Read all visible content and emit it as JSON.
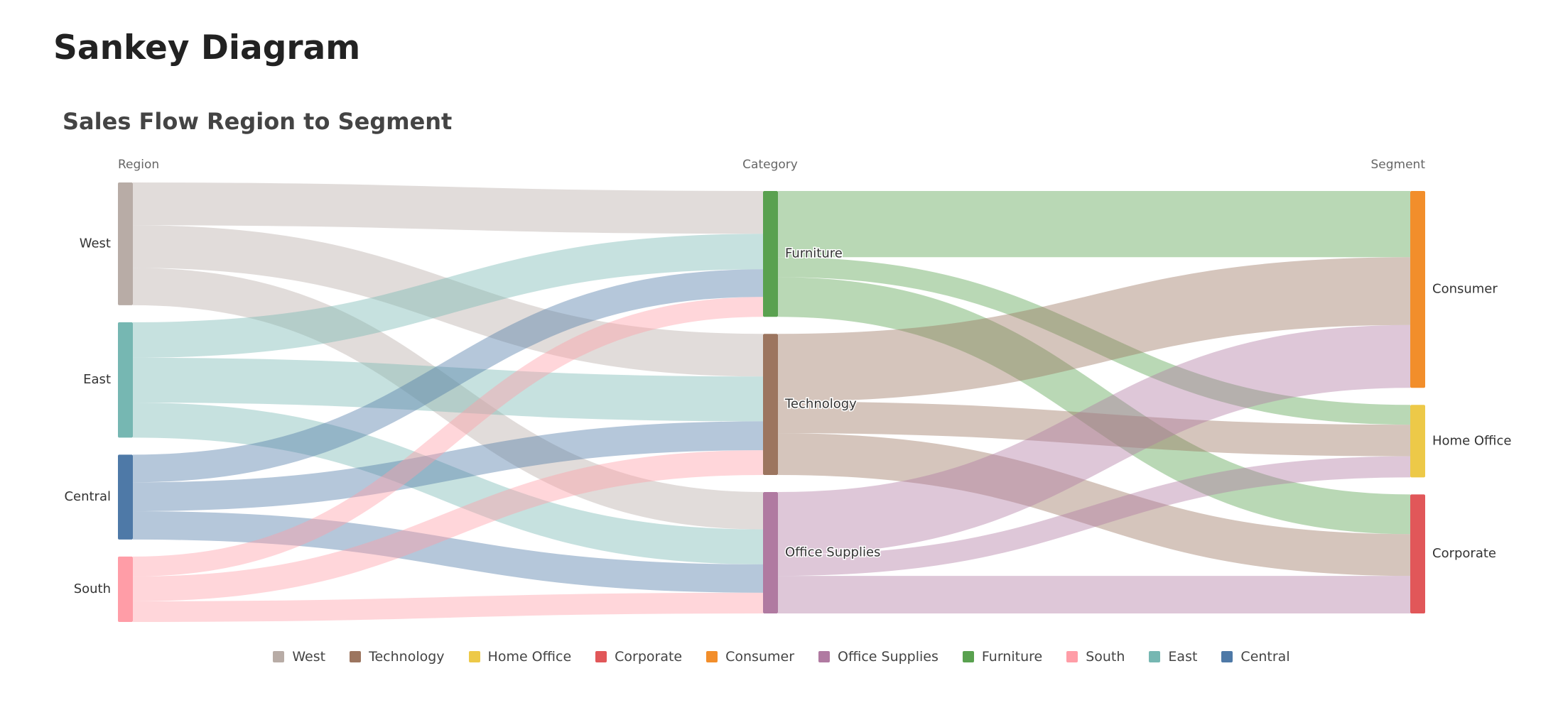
{
  "page_title": "Sankey Diagram",
  "chart_data": {
    "type": "sankey",
    "title": "Sales Flow Region to Segment",
    "columns": [
      "Region",
      "Category",
      "Segment"
    ],
    "nodes": [
      {
        "id": "West",
        "label": "West",
        "column": 0,
        "color": "#b8aca6"
      },
      {
        "id": "East",
        "label": "East",
        "column": 0,
        "color": "#76b7b2"
      },
      {
        "id": "Central",
        "label": "Central",
        "column": 0,
        "color": "#4e79a7"
      },
      {
        "id": "South",
        "label": "South",
        "column": 0,
        "color": "#ff9da7"
      },
      {
        "id": "Furniture",
        "label": "Furniture",
        "column": 1,
        "color": "#59a14f"
      },
      {
        "id": "Technology",
        "label": "Technology",
        "column": 1,
        "color": "#9c755f"
      },
      {
        "id": "Office Supplies",
        "label": "Office Supplies",
        "column": 1,
        "color": "#b07aa1"
      },
      {
        "id": "Consumer",
        "label": "Consumer",
        "column": 2,
        "color": "#f28e2b"
      },
      {
        "id": "Home Office",
        "label": "Home Office",
        "column": 2,
        "color": "#edc948"
      },
      {
        "id": "Corporate",
        "label": "Corporate",
        "column": 2,
        "color": "#e15759"
      }
    ],
    "links": [
      {
        "source": "West",
        "target": "Furniture",
        "value": 252
      },
      {
        "source": "West",
        "target": "Technology",
        "value": 251
      },
      {
        "source": "West",
        "target": "Office Supplies",
        "value": 220
      },
      {
        "source": "East",
        "target": "Furniture",
        "value": 209
      },
      {
        "source": "East",
        "target": "Technology",
        "value": 264
      },
      {
        "source": "East",
        "target": "Office Supplies",
        "value": 206
      },
      {
        "source": "Central",
        "target": "Furniture",
        "value": 163
      },
      {
        "source": "Central",
        "target": "Technology",
        "value": 170
      },
      {
        "source": "Central",
        "target": "Office Supplies",
        "value": 167
      },
      {
        "source": "South",
        "target": "Furniture",
        "value": 117
      },
      {
        "source": "South",
        "target": "Technology",
        "value": 146
      },
      {
        "source": "South",
        "target": "Office Supplies",
        "value": 122
      },
      {
        "source": "Furniture",
        "target": "Consumer",
        "value": 390
      },
      {
        "source": "Furniture",
        "target": "Home Office",
        "value": 117
      },
      {
        "source": "Furniture",
        "target": "Corporate",
        "value": 234
      },
      {
        "source": "Technology",
        "target": "Consumer",
        "value": 399
      },
      {
        "source": "Technology",
        "target": "Home Office",
        "value": 186
      },
      {
        "source": "Technology",
        "target": "Corporate",
        "value": 246
      },
      {
        "source": "Office Supplies",
        "target": "Consumer",
        "value": 370
      },
      {
        "source": "Office Supplies",
        "target": "Home Office",
        "value": 124
      },
      {
        "source": "Office Supplies",
        "target": "Corporate",
        "value": 221
      }
    ],
    "legend": [
      {
        "label": "West",
        "color": "#b8aca6"
      },
      {
        "label": "Technology",
        "color": "#9c755f"
      },
      {
        "label": "Home Office",
        "color": "#edc948"
      },
      {
        "label": "Corporate",
        "color": "#e15759"
      },
      {
        "label": "Consumer",
        "color": "#f28e2b"
      },
      {
        "label": "Office Supplies",
        "color": "#b07aa1"
      },
      {
        "label": "Furniture",
        "color": "#59a14f"
      },
      {
        "label": "South",
        "color": "#ff9da7"
      },
      {
        "label": "East",
        "color": "#76b7b2"
      },
      {
        "label": "Central",
        "color": "#4e79a7"
      }
    ]
  }
}
